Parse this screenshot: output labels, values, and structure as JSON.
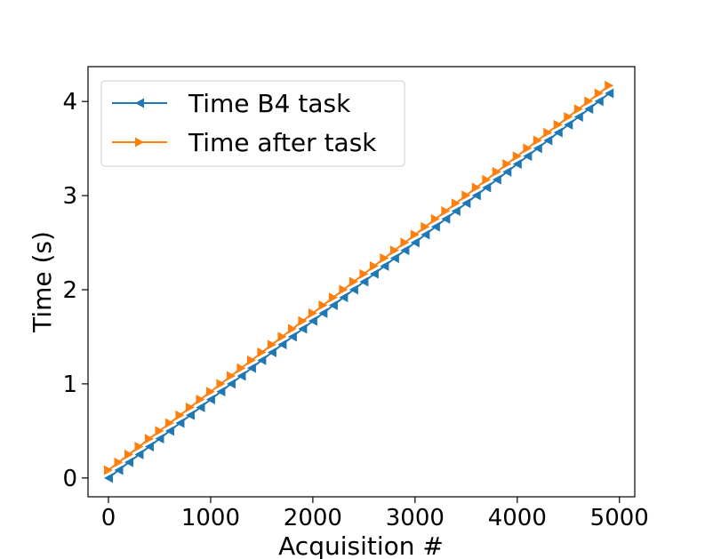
{
  "chart_data": {
    "type": "line",
    "xlabel": "Acquisition #",
    "ylabel": "Time (s)",
    "xlim": [
      -200,
      5150
    ],
    "ylim": [
      -0.2,
      4.37
    ],
    "xticks": [
      0,
      1000,
      2000,
      3000,
      4000,
      5000
    ],
    "xtick_labels": [
      "0",
      "1000",
      "2000",
      "3000",
      "4000",
      "5000"
    ],
    "yticks": [
      0,
      1,
      2,
      3,
      4
    ],
    "ytick_labels": [
      "0",
      "1",
      "2",
      "3",
      "4"
    ],
    "grid": false,
    "legend_position": "upper-left",
    "x_start": 0,
    "x_step": 100,
    "series": [
      {
        "name": "Time B4 task",
        "color": "#1f77b4",
        "marker": "triangle-left",
        "start": 0.0,
        "step": 0.0834,
        "count": 50
      },
      {
        "name": "Time after task",
        "color": "#ff7f0e",
        "marker": "triangle-right",
        "start": 0.083,
        "step": 0.0834,
        "count": 50
      }
    ]
  }
}
